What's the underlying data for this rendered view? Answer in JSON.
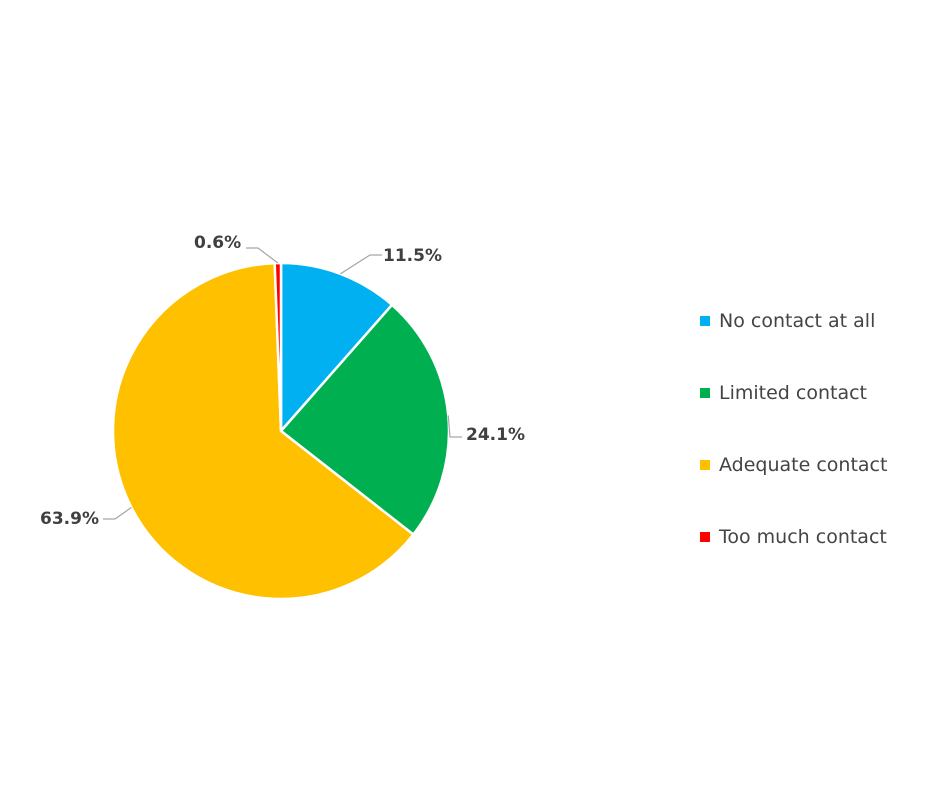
{
  "chart_data": {
    "type": "pie",
    "title": "",
    "categories": [
      "No contact at all",
      "Limited contact",
      "Adequate contact",
      "Too much contact"
    ],
    "values": [
      11.5,
      24.1,
      63.9,
      0.6
    ],
    "data_labels": [
      "11.5%",
      "24.1%",
      "63.9%",
      "0.6%"
    ],
    "colors": [
      "#00B0F0",
      "#00B050",
      "#FFC000",
      "#FF0000"
    ],
    "start_angle_deg": 0,
    "direction": "clockwise",
    "legend_position": "right",
    "legend": [
      {
        "label": "No contact at all",
        "color": "#00B0F0"
      },
      {
        "label": "Limited contact",
        "color": "#00B050"
      },
      {
        "label": "Adequate contact",
        "color": "#FFC000"
      },
      {
        "label": "Too much contact",
        "color": "#FF0000"
      }
    ]
  }
}
